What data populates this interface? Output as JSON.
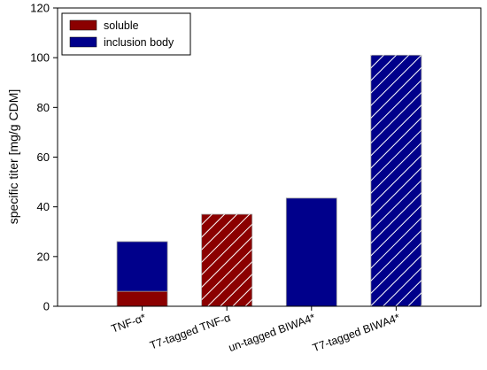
{
  "chart_data": {
    "type": "bar",
    "stacked": true,
    "ylabel": "specific titer [mg/g CDM]",
    "ylim": [
      0,
      120
    ],
    "yticks": [
      0,
      20,
      40,
      60,
      80,
      100,
      120
    ],
    "categories": [
      "TNF-α*",
      "T7-tagged TNF-α",
      "un-tagged BIWA4*",
      "T7-tagged BIWA4*"
    ],
    "category_hatched": [
      false,
      true,
      false,
      true
    ],
    "series": [
      {
        "name": "soluble",
        "color": "#8b0000",
        "values": [
          6,
          37,
          0,
          0
        ]
      },
      {
        "name": "inclusion body",
        "color": "#00008b",
        "values": [
          20,
          0,
          43.5,
          101
        ]
      }
    ],
    "legend": {
      "position": "top-left"
    },
    "grid": false
  }
}
